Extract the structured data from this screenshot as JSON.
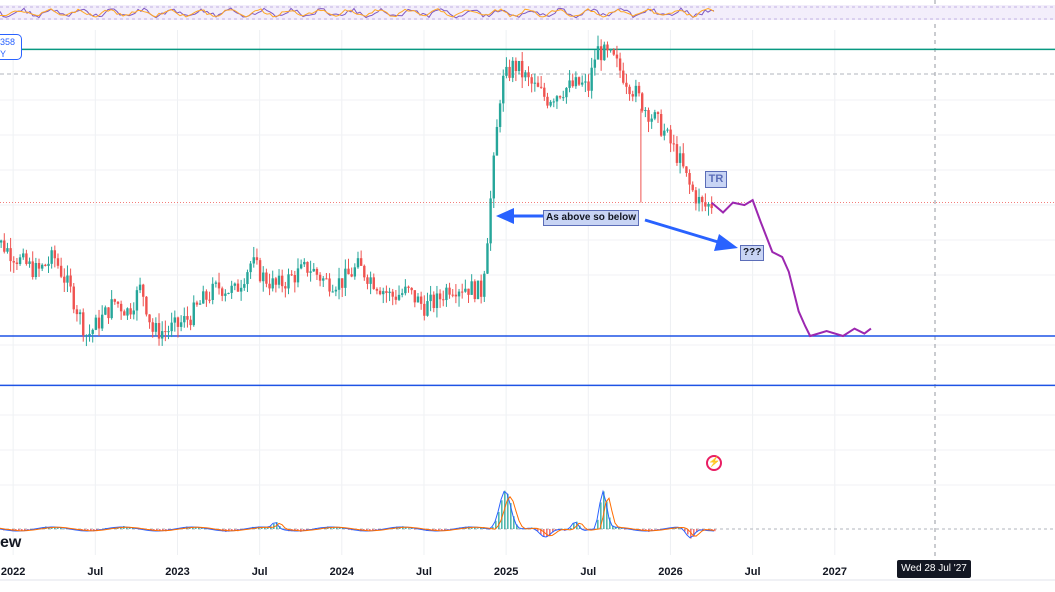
{
  "symbol_badge": {
    "line1": "358",
    "line2": "Y"
  },
  "brand_fragment": "ew",
  "crosshair_date": "Wed 28 Jul '27",
  "annotations": {
    "main": "As above so below",
    "question": "???",
    "tr": "TR"
  },
  "colors": {
    "up": "#26a69a",
    "down": "#ef5350",
    "support": "#1e53e5",
    "resistance": "#089981",
    "projection": "#9c27b0",
    "arrow": "#2962ff"
  },
  "chart_data": {
    "type": "line",
    "x_ticks": [
      "2022",
      "Jul",
      "2023",
      "Jul",
      "2024",
      "Jul",
      "2025",
      "Jul",
      "2026",
      "Jul",
      "2027"
    ],
    "price_series": {
      "x": [
        2021.85,
        2021.95,
        2022.05,
        2022.15,
        2022.25,
        2022.35,
        2022.45,
        2022.5,
        2022.55,
        2022.62,
        2022.7,
        2022.78,
        2022.85,
        2022.92,
        2023.0,
        2023.08,
        2023.15,
        2023.25,
        2023.35,
        2023.45,
        2023.52,
        2023.6,
        2023.7,
        2023.8,
        2023.9,
        2024.0,
        2024.1,
        2024.2,
        2024.3,
        2024.4,
        2024.5,
        2024.58,
        2024.65,
        2024.75,
        2024.85,
        2024.88,
        2024.92,
        2024.97,
        2025.05,
        2025.15,
        2025.25,
        2025.35,
        2025.45,
        2025.5,
        2025.55,
        2025.65,
        2025.75,
        2025.85,
        2025.95,
        2026.05,
        2026.12,
        2026.2,
        2026.27
      ],
      "y": [
        43,
        40,
        37,
        35,
        38,
        31,
        22,
        24,
        26,
        29,
        27,
        32,
        23,
        23,
        24,
        26,
        29,
        32,
        31,
        37,
        34,
        32,
        34,
        36,
        33,
        33,
        36,
        33,
        30,
        31,
        28,
        29,
        32,
        32,
        31,
        40,
        55,
        73,
        77,
        73,
        70,
        72,
        73,
        72,
        80,
        78,
        73,
        68,
        64,
        58,
        52,
        48,
        49
      ]
    },
    "projection": {
      "x": [
        2026.25,
        2026.32,
        2026.38,
        2026.45,
        2026.5,
        2026.55,
        2026.62,
        2026.68,
        2026.72,
        2026.75,
        2026.78,
        2026.82,
        2026.85,
        2026.95,
        2027.05,
        2027.12,
        2027.18,
        2027.22
      ],
      "y": [
        49,
        47,
        49,
        48.5,
        49.5,
        45,
        39,
        38,
        35,
        31,
        27,
        24,
        22,
        23,
        22,
        23.5,
        22.5,
        23.5
      ]
    },
    "levels": {
      "resistance": 80,
      "support": 22,
      "lower": 12
    },
    "ylim": [
      5,
      90
    ],
    "xlim": [
      2021.92,
      2028.34
    ]
  }
}
